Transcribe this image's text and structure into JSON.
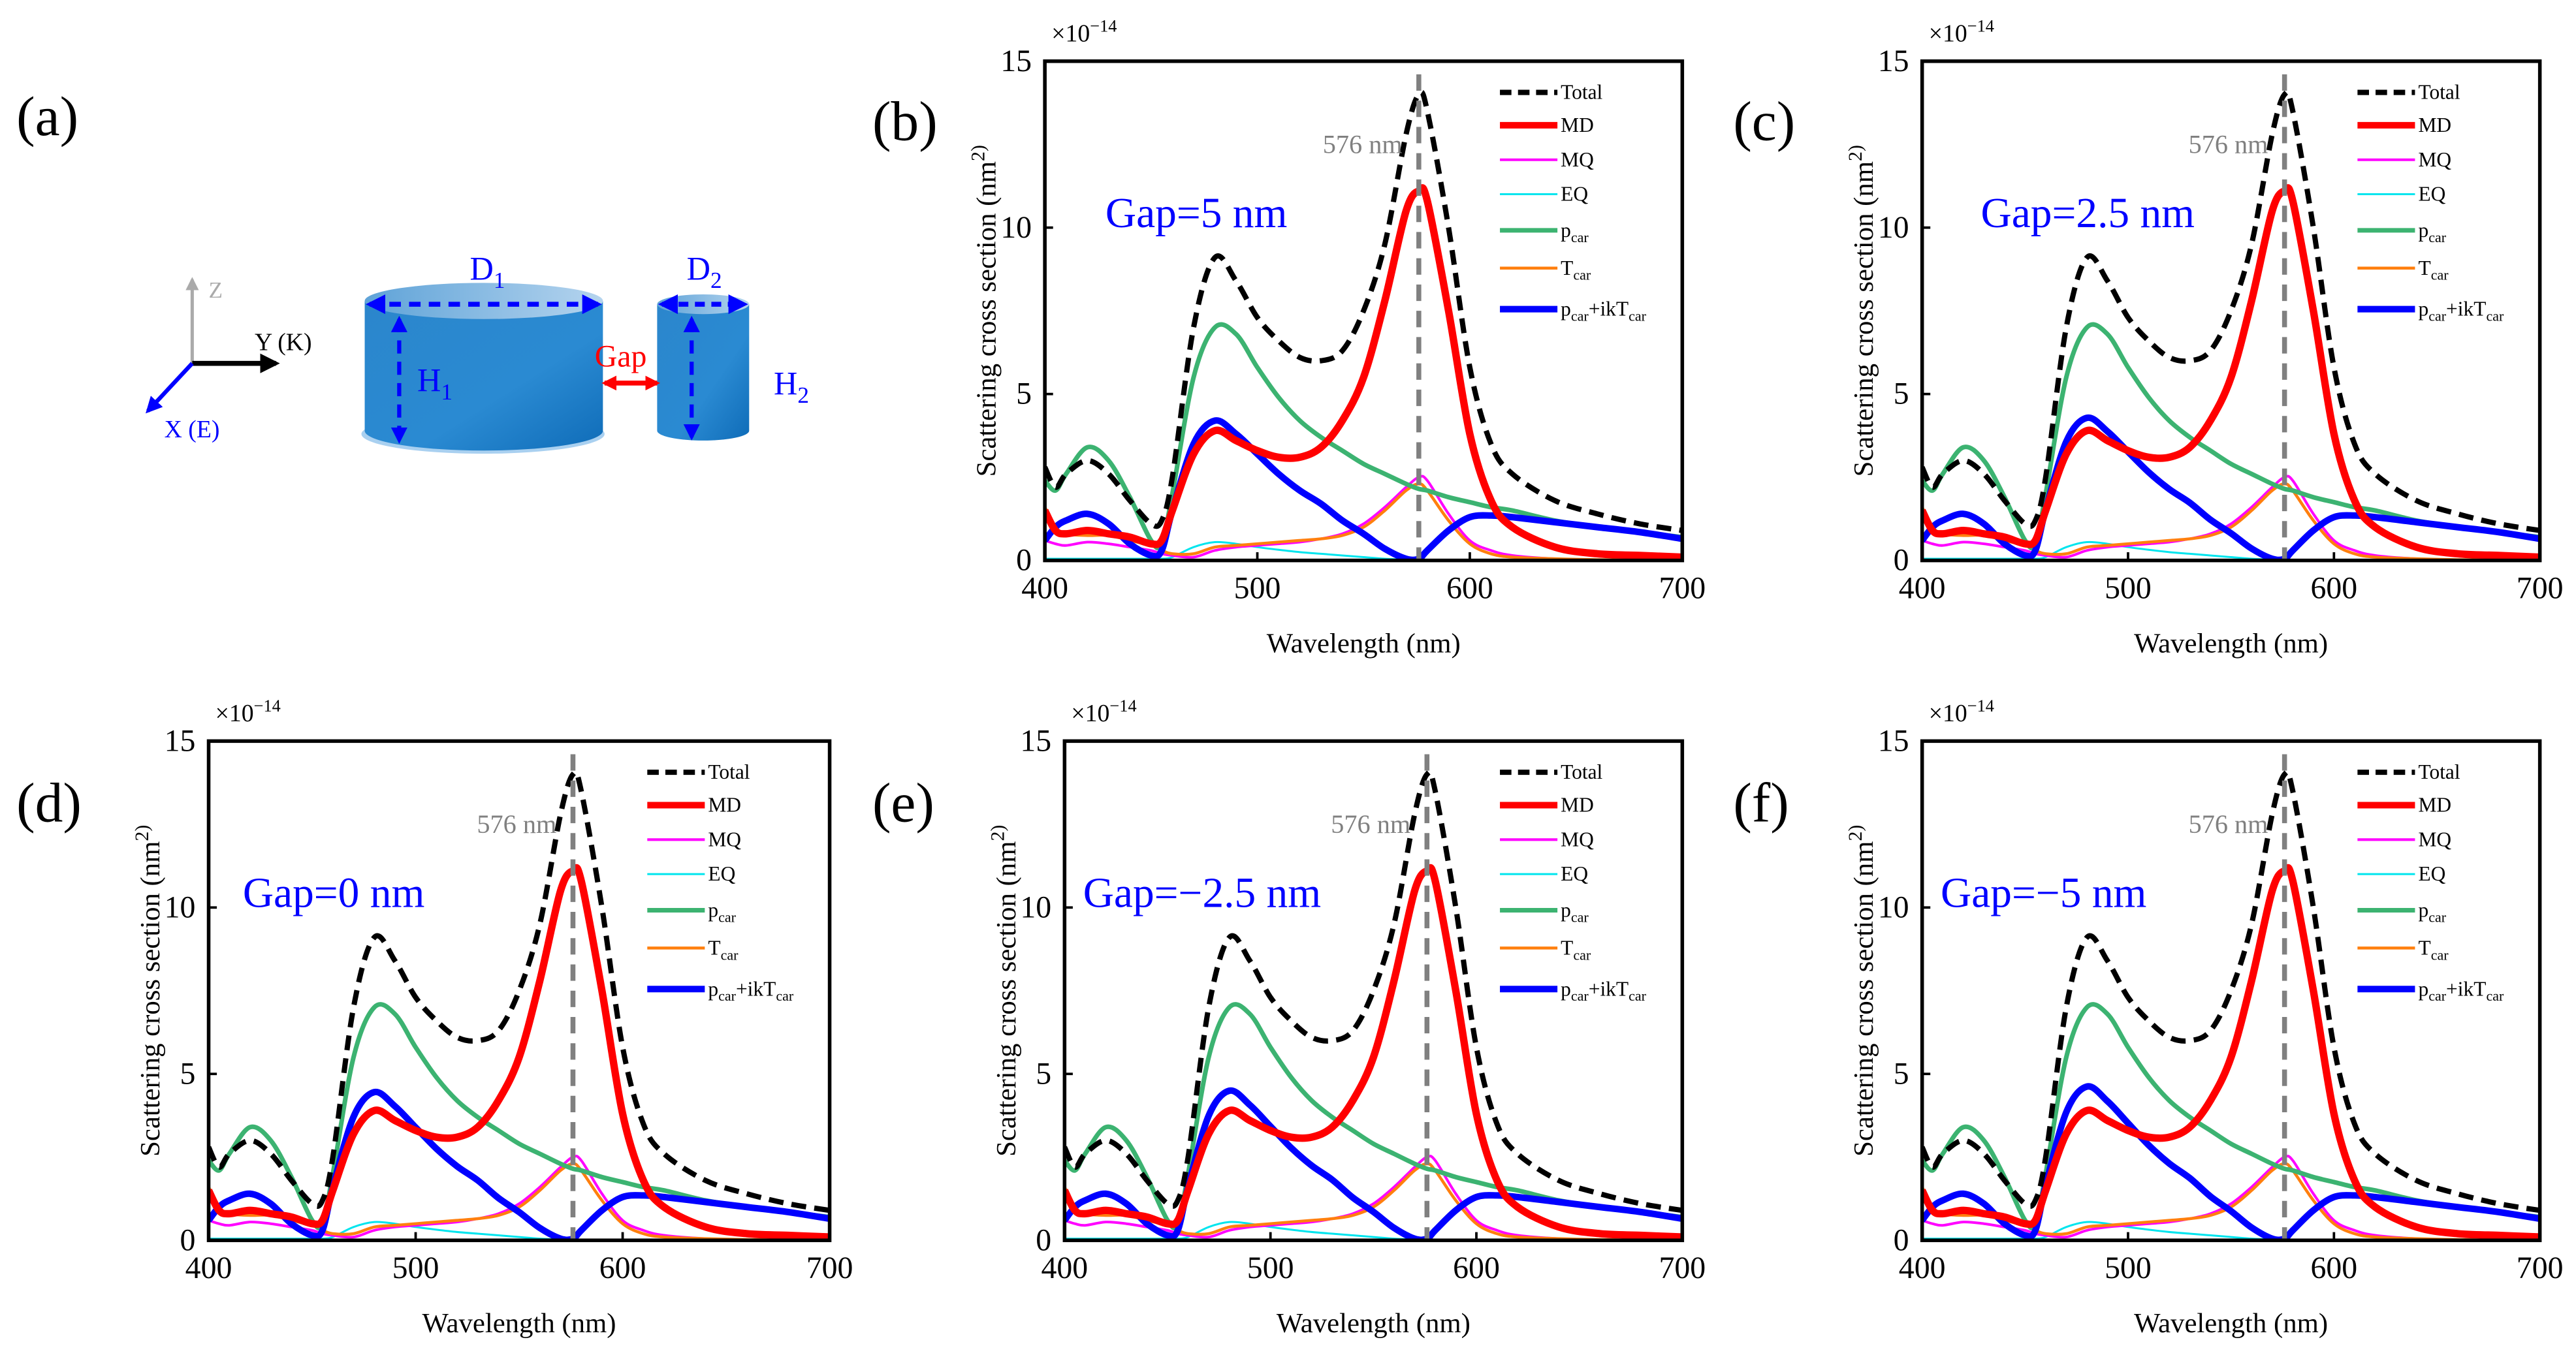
{
  "panel_a": {
    "label": "(a)",
    "axes": {
      "z": "Z",
      "y": "Y (K)",
      "x": "X (E)"
    },
    "d1": "D_1",
    "d2": "D_2",
    "h1": "H_1",
    "h2": "H_2",
    "gap": "Gap",
    "colors": {
      "cylinder": "#1a78c2",
      "dim": "#0000ff",
      "gap": "#ff0000"
    }
  },
  "chart_data": {
    "type": "line",
    "xlabel": "Wavelength (nm)",
    "ylabel": "Scattering cross section (nm^2)",
    "yscale_label": "×10^−14",
    "xlim": [
      400,
      700
    ],
    "ylim": [
      0,
      15
    ],
    "xticks": [
      400,
      500,
      600,
      700
    ],
    "yticks": [
      0,
      5,
      10,
      15
    ],
    "marker_line": {
      "x": 576,
      "label": "576 nm",
      "color": "#808080"
    },
    "legend_position": "top-right",
    "panels": [
      {
        "label": "(b)",
        "annotation": "Gap=5 nm",
        "blue_peak_scale": 1.0
      },
      {
        "label": "(c)",
        "annotation": "Gap=2.5 nm",
        "blue_peak_scale": 1.02
      },
      {
        "label": "(d)",
        "annotation": "Gap=0 nm",
        "blue_peak_scale": 1.06
      },
      {
        "label": "(e)",
        "annotation": "Gap=−2.5 nm",
        "blue_peak_scale": 1.07
      },
      {
        "label": "(f)",
        "annotation": "Gap=−5 nm",
        "blue_peak_scale": 1.1
      }
    ],
    "x": [
      400,
      405,
      410,
      420,
      430,
      440,
      450,
      455,
      460,
      470,
      480,
      490,
      500,
      510,
      520,
      530,
      540,
      550,
      560,
      570,
      576,
      580,
      590,
      600,
      610,
      620,
      640,
      660,
      680,
      700
    ],
    "series": [
      {
        "name": "Total",
        "color": "#000000",
        "dashed": true,
        "width": 3.2,
        "values": [
          2.8,
          2.2,
          2.6,
          3.0,
          2.6,
          1.8,
          1.1,
          1.2,
          2.5,
          7.0,
          9.1,
          8.4,
          7.3,
          6.6,
          6.1,
          6.0,
          6.3,
          7.5,
          9.5,
          12.8,
          14.0,
          13.5,
          10.0,
          5.8,
          3.5,
          2.6,
          1.8,
          1.4,
          1.1,
          0.9
        ]
      },
      {
        "name": "MD",
        "color": "#ff0000",
        "width": 4.5,
        "values": [
          1.5,
          0.9,
          0.8,
          0.9,
          0.8,
          0.7,
          0.5,
          0.6,
          1.5,
          3.2,
          3.9,
          3.6,
          3.3,
          3.1,
          3.1,
          3.4,
          4.2,
          5.5,
          7.8,
          10.5,
          11.1,
          10.8,
          7.5,
          3.8,
          1.8,
          1.0,
          0.4,
          0.2,
          0.15,
          0.1
        ]
      },
      {
        "name": "MQ",
        "color": "#ff00ff",
        "width": 1.6,
        "values": [
          0.6,
          0.5,
          0.45,
          0.55,
          0.5,
          0.4,
          0.3,
          0.2,
          0.15,
          0.1,
          0.3,
          0.4,
          0.45,
          0.5,
          0.55,
          0.65,
          0.8,
          1.1,
          1.6,
          2.2,
          2.5,
          2.4,
          1.4,
          0.6,
          0.3,
          0.15,
          0.05,
          0.02,
          0.01,
          0
        ]
      },
      {
        "name": "EQ",
        "color": "#00e5ee",
        "width": 1.2,
        "values": [
          0.05,
          0.05,
          0.05,
          0.05,
          0.05,
          0.05,
          0.05,
          0.05,
          0.1,
          0.4,
          0.55,
          0.5,
          0.4,
          0.32,
          0.25,
          0.2,
          0.15,
          0.1,
          0.05,
          0.02,
          0,
          0,
          0,
          0,
          0,
          0,
          0,
          0,
          0,
          0
        ]
      },
      {
        "name": "p_car",
        "color": "#3cb371",
        "width": 2.8,
        "values": [
          2.4,
          2.1,
          2.6,
          3.4,
          3.0,
          1.9,
          0.6,
          0.5,
          2.0,
          5.5,
          7.0,
          6.8,
          5.8,
          4.9,
          4.2,
          3.7,
          3.3,
          2.9,
          2.6,
          2.3,
          2.15,
          2.1,
          1.9,
          1.75,
          1.6,
          1.5,
          1.2,
          1.0,
          0.85,
          0.7
        ]
      },
      {
        "name": "T_car",
        "color": "#ff7f0e",
        "width": 1.8,
        "values": [
          1.6,
          1.0,
          0.8,
          0.75,
          0.75,
          0.6,
          0.45,
          0.3,
          0.2,
          0.2,
          0.4,
          0.45,
          0.5,
          0.55,
          0.6,
          0.65,
          0.75,
          1.0,
          1.5,
          2.1,
          2.3,
          2.1,
          1.2,
          0.5,
          0.2,
          0.1,
          0.05,
          0.02,
          0.01,
          0
        ]
      },
      {
        "name": "p_car+ikT_car",
        "color": "#0000ff",
        "width": 4.0,
        "values": [
          0.6,
          1.0,
          1.2,
          1.4,
          1.1,
          0.5,
          0.15,
          0.3,
          1.5,
          3.5,
          4.2,
          3.8,
          3.2,
          2.6,
          2.1,
          1.7,
          1.2,
          0.8,
          0.35,
          0.05,
          0.05,
          0.3,
          0.9,
          1.3,
          1.35,
          1.3,
          1.15,
          1.0,
          0.85,
          0.65
        ]
      }
    ]
  }
}
